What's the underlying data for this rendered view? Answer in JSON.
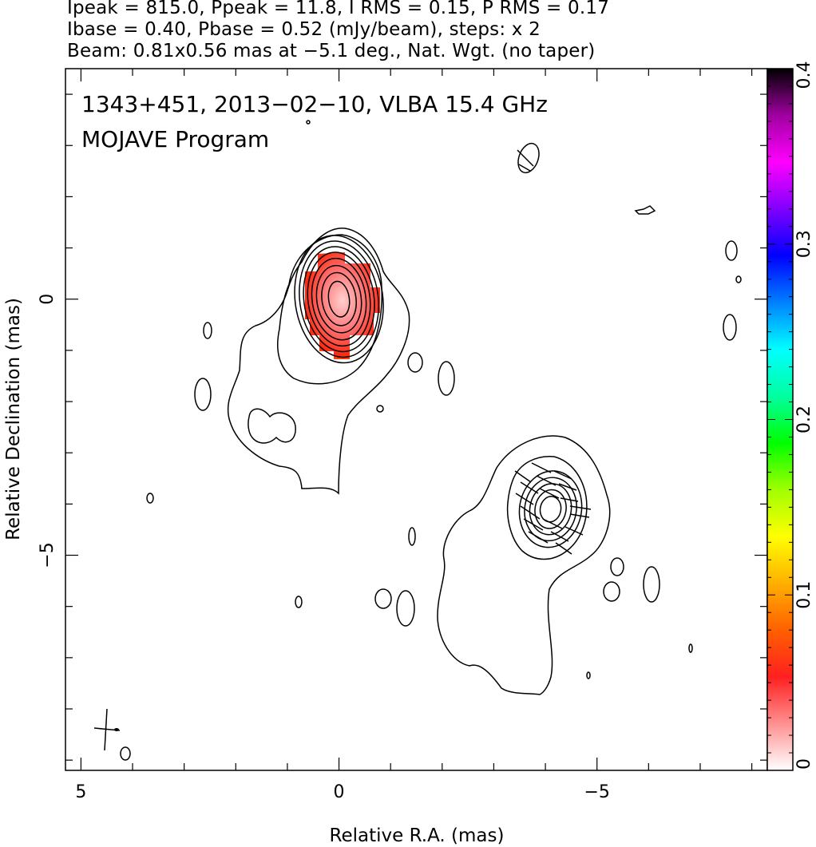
{
  "header": {
    "line1": "Ipeak = 815.0, Ppeak = 11.8, I RMS = 0.15, P RMS = 0.17",
    "line2": "Ibase = 0.40, Pbase = 0.52 (mJy/beam), steps: x 2",
    "line3": "Beam: 0.81x0.56 mas at −5.1 deg., Nat. Wgt. (no taper)"
  },
  "panel": {
    "source_line": "1343+451, 2013−02−10, VLBA 15.4 GHz",
    "program_line": "MOJAVE Program"
  },
  "chart_data": {
    "type": "contour",
    "xlabel": "Relative R.A. (mas)",
    "ylabel": "Relative Declination (mas)",
    "xlim": [
      5.3,
      -8.3
    ],
    "ylim": [
      -9.2,
      4.5
    ],
    "x_ticks": [
      {
        "value": 5,
        "label": "5"
      },
      {
        "value": 0,
        "label": "0"
      },
      {
        "value": -5,
        "label": "−5"
      }
    ],
    "y_ticks": [
      {
        "value": 0,
        "label": "0"
      },
      {
        "value": -5,
        "label": "−5"
      }
    ],
    "colorbar": {
      "min": 0,
      "max": 0.4,
      "ticks": [
        {
          "value": 0,
          "label": "0"
        },
        {
          "value": 0.1,
          "label": "0.1"
        },
        {
          "value": 0.2,
          "label": "0.2"
        },
        {
          "value": 0.3,
          "label": "0.3"
        },
        {
          "value": 0.4,
          "label": "0.4"
        }
      ],
      "colors": [
        "#ffffff",
        "#ff9090",
        "#ff2020",
        "#ff6000",
        "#ffb000",
        "#ffff00",
        "#a0ff00",
        "#00ff00",
        "#00ffa0",
        "#00ffff",
        "#0080ff",
        "#0000ff",
        "#8000ff",
        "#ff00ff",
        "#a000a0",
        "#000000"
      ]
    },
    "core": {
      "x": 0,
      "y": 0,
      "contours": [
        {
          "rx": 0.2,
          "ry": 0.35
        },
        {
          "rx": 0.33,
          "ry": 0.52
        },
        {
          "rx": 0.43,
          "ry": 0.66
        },
        {
          "rx": 0.52,
          "ry": 0.8
        },
        {
          "rx": 0.6,
          "ry": 0.92
        },
        {
          "rx": 0.68,
          "ry": 1.03
        },
        {
          "rx": 0.76,
          "ry": 1.14
        },
        {
          "rx": 0.85,
          "ry": 1.25
        }
      ]
    },
    "jet_component": {
      "x": -4.1,
      "y": -4.1,
      "contours": [
        {
          "rx": 0.2,
          "ry": 0.25
        },
        {
          "rx": 0.3,
          "ry": 0.38
        },
        {
          "rx": 0.4,
          "ry": 0.5
        },
        {
          "rx": 0.5,
          "ry": 0.62
        },
        {
          "rx": 0.6,
          "ry": 0.75
        }
      ]
    },
    "beam": {
      "major_mas": 0.81,
      "minor_mas": 0.56,
      "pa_deg": -5.1
    }
  }
}
